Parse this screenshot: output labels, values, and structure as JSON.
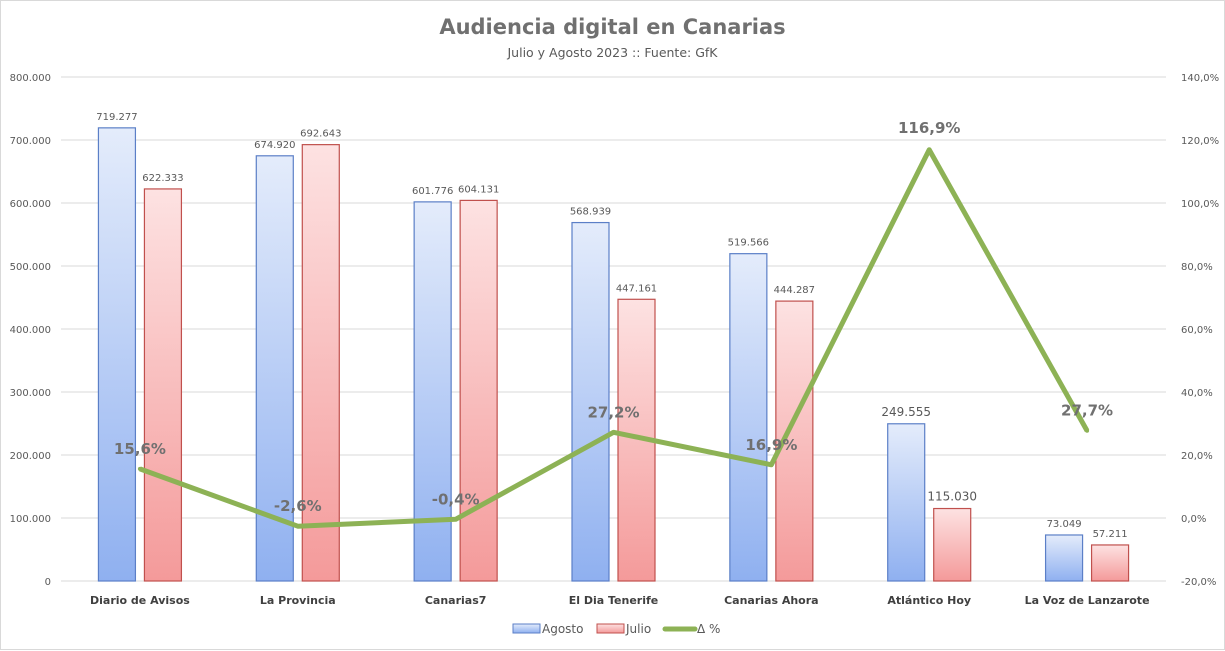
{
  "chart_data": {
    "type": "bar+line",
    "title": "Audiencia digital en Canarias",
    "subtitle": "Julio y Agosto 2023 :: Fuente: GfK",
    "categories": [
      "Diario de Avisos",
      "La Provincia",
      "Canarias7",
      "El Dia Tenerife",
      "Canarias Ahora",
      "Atlántico Hoy",
      "La Voz de Lanzarote"
    ],
    "series": [
      {
        "name": "Agosto",
        "type": "bar",
        "axis": "left",
        "color": "#8faadc",
        "values": [
          719277,
          674920,
          601776,
          568939,
          519566,
          249555,
          73049
        ],
        "labels": [
          "719.277",
          "674.920",
          "601.776",
          "568.939",
          "519.566",
          "249.555",
          "73.049"
        ]
      },
      {
        "name": "Julio",
        "type": "bar",
        "axis": "left",
        "color": "#e88a8a",
        "values": [
          622333,
          692643,
          604131,
          447161,
          444287,
          115030,
          57211
        ],
        "labels": [
          "622.333",
          "692.643",
          "604.131",
          "447.161",
          "444.287",
          "115.030",
          "57.211"
        ]
      },
      {
        "name": "Δ %",
        "type": "line",
        "axis": "right",
        "color": "#8db255",
        "values": [
          15.6,
          -2.6,
          -0.4,
          27.2,
          16.9,
          116.9,
          27.7
        ],
        "labels": [
          "15,6%",
          "-2,6%",
          "-0,4%",
          "27,2%",
          "16,9%",
          "116,9%",
          "27,7%"
        ]
      }
    ],
    "left_axis": {
      "range": [
        0,
        800000
      ],
      "ticks": [
        "0",
        "100.000",
        "200.000",
        "300.000",
        "400.000",
        "500.000",
        "600.000",
        "700.000",
        "800.000"
      ]
    },
    "right_axis": {
      "range": [
        -20,
        140
      ],
      "ticks": [
        "-20,0%",
        "0,0%",
        "20,0%",
        "40,0%",
        "60,0%",
        "80,0%",
        "100,0%",
        "120,0%",
        "140,0%"
      ]
    },
    "grid": true,
    "legend": "bottom"
  }
}
